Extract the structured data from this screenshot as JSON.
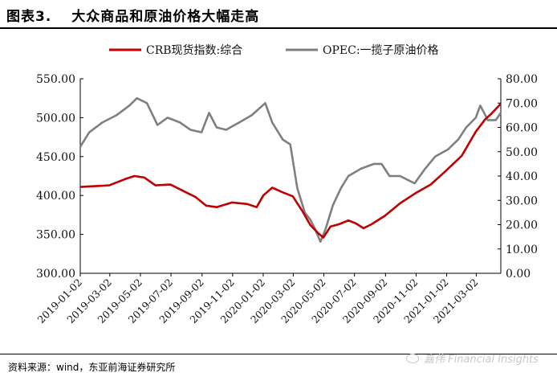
{
  "figure": {
    "title": "图表3.　 大众商品和原油价格大幅走高",
    "source": "资料来源：wind，东亚前海证券研究所",
    "watermark": "嘉伟 Financial Insights"
  },
  "chart_data": {
    "type": "line",
    "title": "",
    "xlabel": "",
    "ylabel": "",
    "x_start": "2019-01-02",
    "x_end": "2021-04-20",
    "x_ticks": [
      "2019-01-02",
      "2019-03-02",
      "2019-05-02",
      "2019-07-02",
      "2019-09-02",
      "2019-11-02",
      "2020-01-02",
      "2020-03-02",
      "2020-05-02",
      "2020-07-02",
      "2020-09-02",
      "2020-11-02",
      "2021-01-02",
      "2021-03-02"
    ],
    "y_left": {
      "min": 300,
      "max": 550,
      "ticks": [
        "300.00",
        "350.00",
        "400.00",
        "450.00",
        "500.00",
        "550.00"
      ]
    },
    "y_right": {
      "min": 0,
      "max": 80,
      "ticks": [
        "0.00",
        "10.00",
        "20.00",
        "30.00",
        "40.00",
        "50.00",
        "60.00",
        "70.00",
        "80.00"
      ]
    },
    "grid": false,
    "legend_position": "top",
    "series": [
      {
        "name": "CRB现货指数:综合",
        "axis": "left",
        "color": "#c00000",
        "points": [
          [
            "2019-01-02",
            411
          ],
          [
            "2019-02-01",
            412
          ],
          [
            "2019-03-01",
            413
          ],
          [
            "2019-04-01",
            421
          ],
          [
            "2019-04-20",
            425
          ],
          [
            "2019-05-10",
            423
          ],
          [
            "2019-06-01",
            413
          ],
          [
            "2019-07-01",
            414
          ],
          [
            "2019-08-01",
            404
          ],
          [
            "2019-08-20",
            398
          ],
          [
            "2019-09-10",
            387
          ],
          [
            "2019-10-01",
            385
          ],
          [
            "2019-11-01",
            391
          ],
          [
            "2019-12-01",
            389
          ],
          [
            "2019-12-20",
            385
          ],
          [
            "2020-01-02",
            400
          ],
          [
            "2020-01-20",
            410
          ],
          [
            "2020-02-10",
            404
          ],
          [
            "2020-03-01",
            399
          ],
          [
            "2020-03-20",
            380
          ],
          [
            "2020-04-05",
            362
          ],
          [
            "2020-04-20",
            352
          ],
          [
            "2020-05-01",
            346
          ],
          [
            "2020-05-15",
            360
          ],
          [
            "2020-06-01",
            363
          ],
          [
            "2020-06-20",
            368
          ],
          [
            "2020-07-05",
            364
          ],
          [
            "2020-07-20",
            358
          ],
          [
            "2020-08-05",
            363
          ],
          [
            "2020-09-01",
            374
          ],
          [
            "2020-10-01",
            390
          ],
          [
            "2020-11-01",
            403
          ],
          [
            "2020-12-01",
            414
          ],
          [
            "2021-01-01",
            432
          ],
          [
            "2021-02-01",
            451
          ],
          [
            "2021-03-01",
            482
          ],
          [
            "2021-03-20",
            498
          ],
          [
            "2021-04-01",
            505
          ],
          [
            "2021-04-20",
            518
          ]
        ]
      },
      {
        "name": "OPEC:一揽子原油价格",
        "axis": "right",
        "color": "#7f7f7f",
        "points": [
          [
            "2019-01-02",
            52
          ],
          [
            "2019-01-20",
            58
          ],
          [
            "2019-02-15",
            62
          ],
          [
            "2019-03-15",
            65
          ],
          [
            "2019-04-10",
            69
          ],
          [
            "2019-04-25",
            72
          ],
          [
            "2019-05-15",
            70
          ],
          [
            "2019-06-05",
            61
          ],
          [
            "2019-06-25",
            64
          ],
          [
            "2019-07-20",
            62
          ],
          [
            "2019-08-10",
            59
          ],
          [
            "2019-09-01",
            58
          ],
          [
            "2019-09-16",
            66
          ],
          [
            "2019-10-01",
            60
          ],
          [
            "2019-10-20",
            59
          ],
          [
            "2019-11-15",
            62
          ],
          [
            "2019-12-10",
            65
          ],
          [
            "2020-01-06",
            70
          ],
          [
            "2020-01-20",
            62
          ],
          [
            "2020-02-10",
            55
          ],
          [
            "2020-02-25",
            53
          ],
          [
            "2020-03-10",
            35
          ],
          [
            "2020-03-25",
            25
          ],
          [
            "2020-04-05",
            22
          ],
          [
            "2020-04-15",
            18
          ],
          [
            "2020-04-25",
            13
          ],
          [
            "2020-05-05",
            18
          ],
          [
            "2020-05-20",
            28
          ],
          [
            "2020-06-05",
            35
          ],
          [
            "2020-06-20",
            40
          ],
          [
            "2020-07-15",
            43
          ],
          [
            "2020-08-10",
            45
          ],
          [
            "2020-08-25",
            45
          ],
          [
            "2020-09-10",
            40
          ],
          [
            "2020-10-01",
            40
          ],
          [
            "2020-10-30",
            37
          ],
          [
            "2020-11-20",
            43
          ],
          [
            "2020-12-10",
            48
          ],
          [
            "2021-01-05",
            51
          ],
          [
            "2021-01-25",
            55
          ],
          [
            "2021-02-10",
            60
          ],
          [
            "2021-03-01",
            64
          ],
          [
            "2021-03-10",
            69
          ],
          [
            "2021-03-25",
            63
          ],
          [
            "2021-04-10",
            63
          ],
          [
            "2021-04-20",
            66
          ]
        ]
      }
    ]
  }
}
